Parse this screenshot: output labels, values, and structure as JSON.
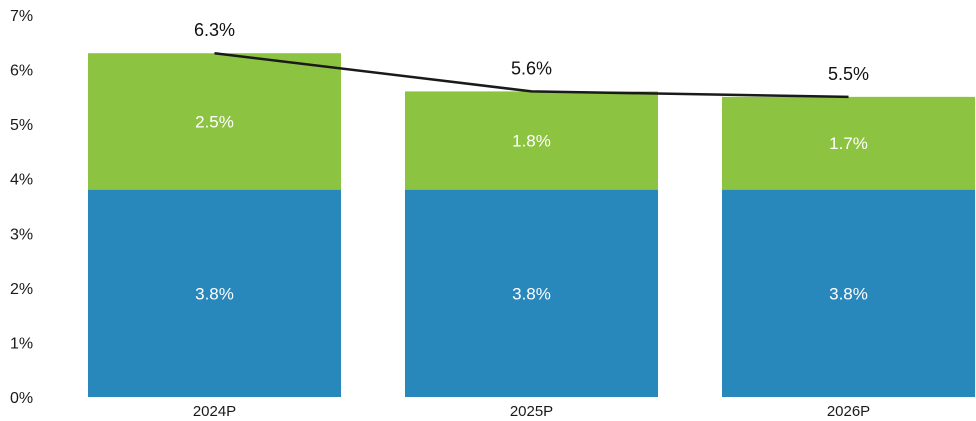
{
  "chart_data": {
    "type": "bar",
    "stacked": true,
    "categories": [
      "2024P",
      "2025P",
      "2026P"
    ],
    "series": [
      {
        "color": "#2887bb",
        "values": [
          3.8,
          3.8,
          3.8
        ],
        "labels": [
          "3.8%",
          "3.8%",
          "3.8%"
        ]
      },
      {
        "color": "#8cc442",
        "values": [
          2.5,
          1.8,
          1.7
        ],
        "labels": [
          "2.5%",
          "1.8%",
          "1.7%"
        ]
      }
    ],
    "total_line": {
      "color": "#1a1a1a",
      "values": [
        6.3,
        5.6,
        5.5
      ],
      "labels": [
        "6.3%",
        "5.6%",
        "5.5%"
      ]
    },
    "y_ticks": [
      {
        "value": 0,
        "label": "0%"
      },
      {
        "value": 1,
        "label": "1%"
      },
      {
        "value": 2,
        "label": "2%"
      },
      {
        "value": 3,
        "label": "3%"
      },
      {
        "value": 4,
        "label": "4%"
      },
      {
        "value": 5,
        "label": "5%"
      },
      {
        "value": 6,
        "label": "6%"
      },
      {
        "value": 7,
        "label": "7%"
      }
    ],
    "ylim": [
      0,
      7
    ],
    "grid": false,
    "legend": "none"
  }
}
